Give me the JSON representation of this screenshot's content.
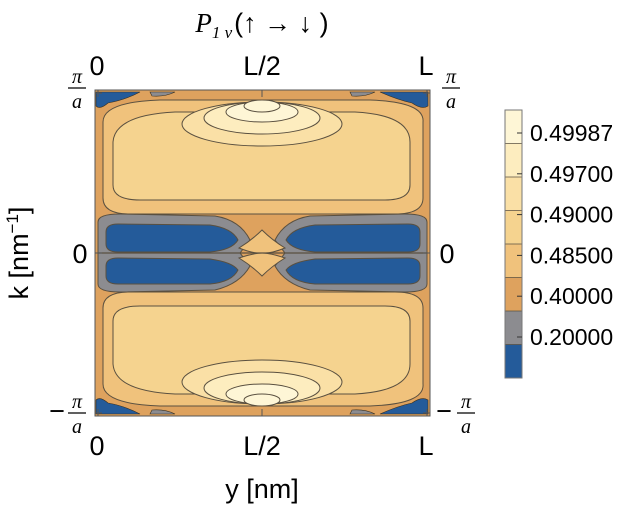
{
  "chart_data": {
    "type": "heatmap",
    "title_main": "P",
    "title_sub": "1 v",
    "title_rest": "(↑ → ↓ )",
    "xlabel": "y [nm]",
    "ylabel_main": "k [nm",
    "ylabel_sup": "−1",
    "ylabel_end": "]",
    "x_ticks": [
      "0",
      "L/2",
      "L"
    ],
    "y_tick_zero": "0",
    "y_tick_pi": "π",
    "y_tick_a": "a",
    "y_tick_minus": "−",
    "xlim": [
      "0",
      "L"
    ],
    "ylim": [
      "−π/a",
      "π/a"
    ],
    "legend_ticks": [
      "0.49987",
      "0.49700",
      "0.49000",
      "0.48500",
      "0.40000",
      "0.20000"
    ],
    "levels": [
      0.0,
      0.2,
      0.4,
      0.485,
      0.49,
      0.497,
      0.49987,
      0.5
    ],
    "band_colors": [
      "#245b9a",
      "#8c8c90",
      "#dea25e",
      "#f0c27c",
      "#f5d38f",
      "#fae0a6",
      "#fdedbf",
      "#fef6d6"
    ],
    "contour_stroke": "#5a5040"
  }
}
